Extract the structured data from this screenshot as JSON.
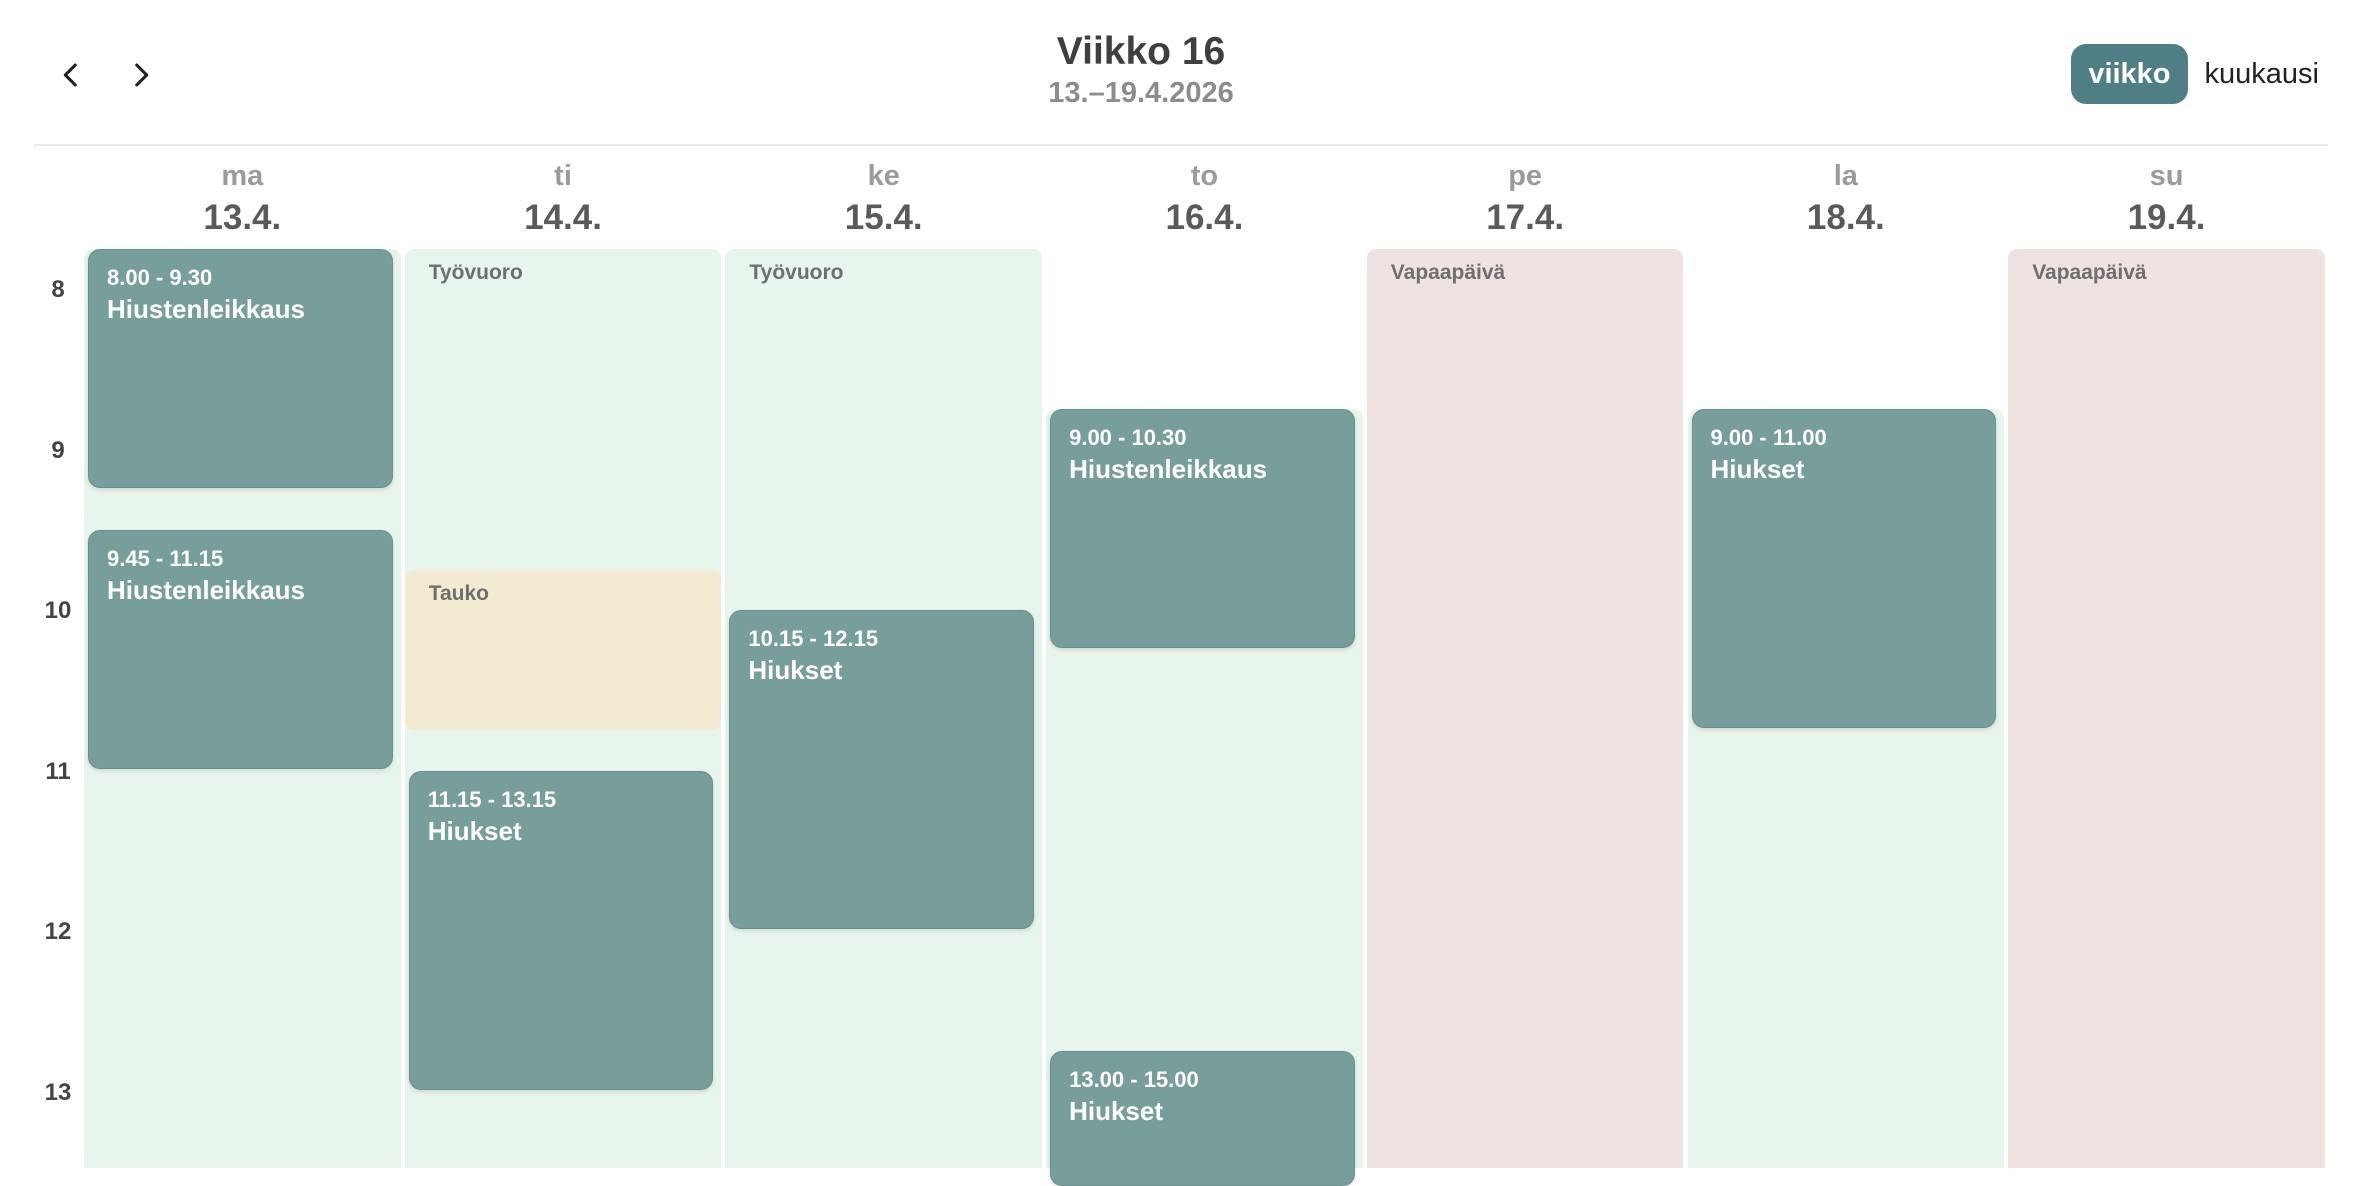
{
  "header": {
    "week_title": "Viikko 16",
    "week_range": "13.–19.4.2026",
    "prev_icon": "chevron-left-icon",
    "next_icon": "chevron-right-icon",
    "views": [
      {
        "label": "viikko",
        "active": true
      },
      {
        "label": "kuukausi",
        "active": false
      }
    ]
  },
  "days": [
    {
      "name": "ma",
      "date": "13.4."
    },
    {
      "name": "ti",
      "date": "14.4."
    },
    {
      "name": "ke",
      "date": "15.4."
    },
    {
      "name": "to",
      "date": "16.4."
    },
    {
      "name": "pe",
      "date": "17.4."
    },
    {
      "name": "la",
      "date": "18.4."
    },
    {
      "name": "su",
      "date": "19.4."
    }
  ],
  "hours": [
    "8",
    "9",
    "10",
    "11",
    "12",
    "13"
  ],
  "backgrounds": [
    {
      "day": 0,
      "type": "shift",
      "start": 7.75,
      "end": 14.0,
      "label": ""
    },
    {
      "day": 1,
      "type": "shift",
      "start": 7.75,
      "end": 14.0,
      "label": "Työvuoro"
    },
    {
      "day": 1,
      "type": "pause",
      "start": 9.75,
      "end": 10.75,
      "label": "Tauko"
    },
    {
      "day": 2,
      "type": "shift",
      "start": 7.75,
      "end": 14.0,
      "label": "Työvuoro"
    },
    {
      "day": 3,
      "type": "shift",
      "start": 8.75,
      "end": 14.0,
      "label": ""
    },
    {
      "day": 4,
      "type": "free",
      "start": 7.75,
      "end": 14.0,
      "label": "Vapaapäivä"
    },
    {
      "day": 5,
      "type": "shift",
      "start": 8.75,
      "end": 14.0,
      "label": ""
    },
    {
      "day": 6,
      "type": "free",
      "start": 7.75,
      "end": 14.0,
      "label": "Vapaapäivä"
    }
  ],
  "events": [
    {
      "day": 0,
      "start": 7.75,
      "end": 9.25,
      "time": "8.00 - 9.30",
      "title": "Hiustenleikkaus"
    },
    {
      "day": 0,
      "start": 9.5,
      "end": 11.0,
      "time": "9.45 - 11.15",
      "title": "Hiustenleikkaus"
    },
    {
      "day": 1,
      "start": 11.0,
      "end": 13.0,
      "time": "11.15 - 13.15",
      "title": "Hiukset"
    },
    {
      "day": 2,
      "start": 10.0,
      "end": 12.0,
      "time": "10.15 - 12.15",
      "title": "Hiukset"
    },
    {
      "day": 3,
      "start": 8.75,
      "end": 10.25,
      "time": "9.00 - 10.30",
      "title": "Hiustenleikkaus"
    },
    {
      "day": 3,
      "start": 12.75,
      "end": 14.75,
      "time": "13.00 - 15.00",
      "title": "Hiukset"
    },
    {
      "day": 5,
      "start": 8.75,
      "end": 10.75,
      "time": "9.00 - 11.00",
      "title": "Hiukset"
    }
  ]
}
